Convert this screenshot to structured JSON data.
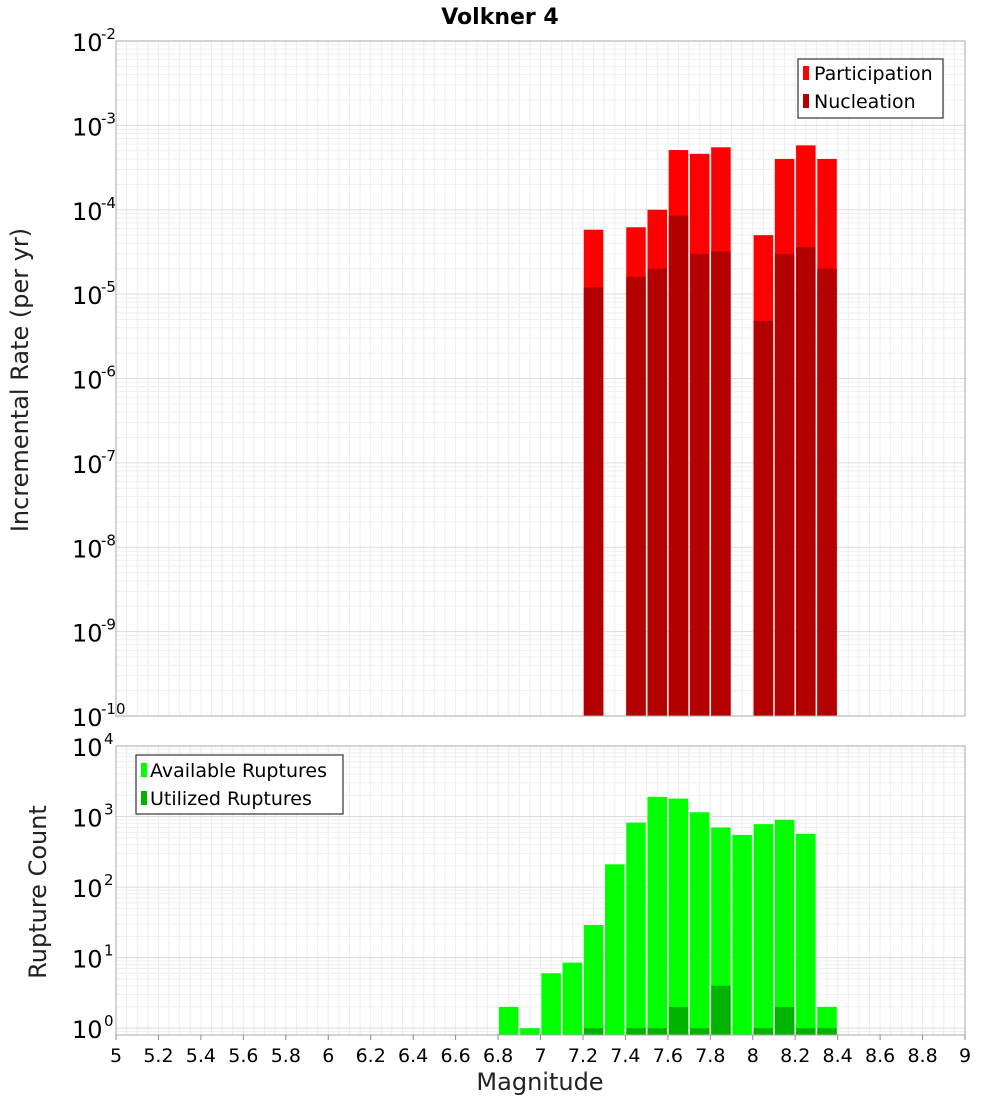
{
  "chart_data": [
    {
      "type": "bar",
      "title": "Volkner 4",
      "ylabel": "Incremental Rate (per yr)",
      "xlabel": "",
      "y_scale": "log",
      "ylim": [
        1e-10,
        0.01
      ],
      "xlim": [
        5,
        9
      ],
      "y_ticks": [
        {
          "base": "10",
          "exp": "-10",
          "value": 1e-10
        },
        {
          "base": "10",
          "exp": "-9",
          "value": 1e-09
        },
        {
          "base": "10",
          "exp": "-8",
          "value": 1e-08
        },
        {
          "base": "10",
          "exp": "-7",
          "value": 1e-07
        },
        {
          "base": "10",
          "exp": "-6",
          "value": 1e-06
        },
        {
          "base": "10",
          "exp": "-5",
          "value": 1e-05
        },
        {
          "base": "10",
          "exp": "-4",
          "value": 0.0001
        },
        {
          "base": "10",
          "exp": "-3",
          "value": 0.001
        },
        {
          "base": "10",
          "exp": "-2",
          "value": 0.01
        }
      ],
      "legend_position": "top-right",
      "grid": true,
      "series": [
        {
          "name": "Participation",
          "color": "#ff0000",
          "points": [
            {
              "x": 7.25,
              "y": 5.8e-05
            },
            {
              "x": 7.45,
              "y": 6.2e-05
            },
            {
              "x": 7.55,
              "y": 0.0001
            },
            {
              "x": 7.65,
              "y": 0.00051
            },
            {
              "x": 7.75,
              "y": 0.00046
            },
            {
              "x": 7.85,
              "y": 0.00055
            },
            {
              "x": 8.05,
              "y": 5e-05
            },
            {
              "x": 8.15,
              "y": 0.0004
            },
            {
              "x": 8.25,
              "y": 0.00058
            },
            {
              "x": 8.35,
              "y": 0.0004
            }
          ]
        },
        {
          "name": "Nucleation",
          "color": "#b30000",
          "points": [
            {
              "x": 7.25,
              "y": 1.2e-05
            },
            {
              "x": 7.45,
              "y": 1.6e-05
            },
            {
              "x": 7.55,
              "y": 2e-05
            },
            {
              "x": 7.65,
              "y": 8.5e-05
            },
            {
              "x": 7.75,
              "y": 3e-05
            },
            {
              "x": 7.85,
              "y": 3.2e-05
            },
            {
              "x": 8.05,
              "y": 4.8e-06
            },
            {
              "x": 8.15,
              "y": 3e-05
            },
            {
              "x": 8.25,
              "y": 3.6e-05
            },
            {
              "x": 8.35,
              "y": 2e-05
            }
          ]
        }
      ]
    },
    {
      "type": "bar",
      "title": "",
      "ylabel": "Rupture Count",
      "xlabel": "Magnitude",
      "y_scale": "log",
      "ylim": [
        0.8,
        10000
      ],
      "xlim": [
        5,
        9
      ],
      "x_ticks": [
        "5",
        "5.2",
        "5.4",
        "5.6",
        "5.8",
        "6",
        "6.2",
        "6.4",
        "6.6",
        "6.8",
        "7",
        "7.2",
        "7.4",
        "7.6",
        "7.8",
        "8",
        "8.2",
        "8.4",
        "8.6",
        "8.8",
        "9"
      ],
      "y_ticks": [
        {
          "base": "10",
          "exp": "0",
          "value": 1
        },
        {
          "base": "10",
          "exp": "1",
          "value": 10
        },
        {
          "base": "10",
          "exp": "2",
          "value": 100
        },
        {
          "base": "10",
          "exp": "3",
          "value": 1000
        },
        {
          "base": "10",
          "exp": "4",
          "value": 10000
        }
      ],
      "legend_position": "top-left",
      "grid": true,
      "series": [
        {
          "name": "Available Ruptures",
          "color": "#00ff00",
          "points": [
            {
              "x": 6.85,
              "y": 2
            },
            {
              "x": 6.95,
              "y": 1
            },
            {
              "x": 7.05,
              "y": 6
            },
            {
              "x": 7.15,
              "y": 8.5
            },
            {
              "x": 7.25,
              "y": 29
            },
            {
              "x": 7.35,
              "y": 210
            },
            {
              "x": 7.45,
              "y": 820
            },
            {
              "x": 7.55,
              "y": 1900
            },
            {
              "x": 7.65,
              "y": 1800
            },
            {
              "x": 7.75,
              "y": 1150
            },
            {
              "x": 7.85,
              "y": 700
            },
            {
              "x": 7.95,
              "y": 550
            },
            {
              "x": 8.05,
              "y": 780
            },
            {
              "x": 8.15,
              "y": 900
            },
            {
              "x": 8.25,
              "y": 570
            },
            {
              "x": 8.35,
              "y": 2
            }
          ]
        },
        {
          "name": "Utilized Ruptures",
          "color": "#00b300",
          "points": [
            {
              "x": 7.25,
              "y": 1
            },
            {
              "x": 7.45,
              "y": 1
            },
            {
              "x": 7.55,
              "y": 1
            },
            {
              "x": 7.65,
              "y": 2
            },
            {
              "x": 7.75,
              "y": 1
            },
            {
              "x": 7.85,
              "y": 4
            },
            {
              "x": 8.05,
              "y": 1
            },
            {
              "x": 8.15,
              "y": 2
            },
            {
              "x": 8.25,
              "y": 1
            },
            {
              "x": 8.35,
              "y": 1
            }
          ]
        }
      ]
    }
  ]
}
